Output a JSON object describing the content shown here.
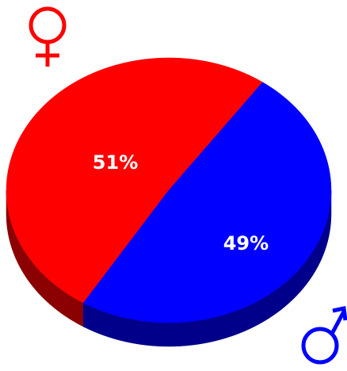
{
  "chart_data": {
    "type": "pie",
    "values": [
      51,
      49
    ],
    "value_labels": [
      "51%",
      "49%"
    ],
    "colors": [
      "#ff0000",
      "#0000ff"
    ],
    "side_colors": [
      "#8b0000",
      "#00008b"
    ]
  }
}
